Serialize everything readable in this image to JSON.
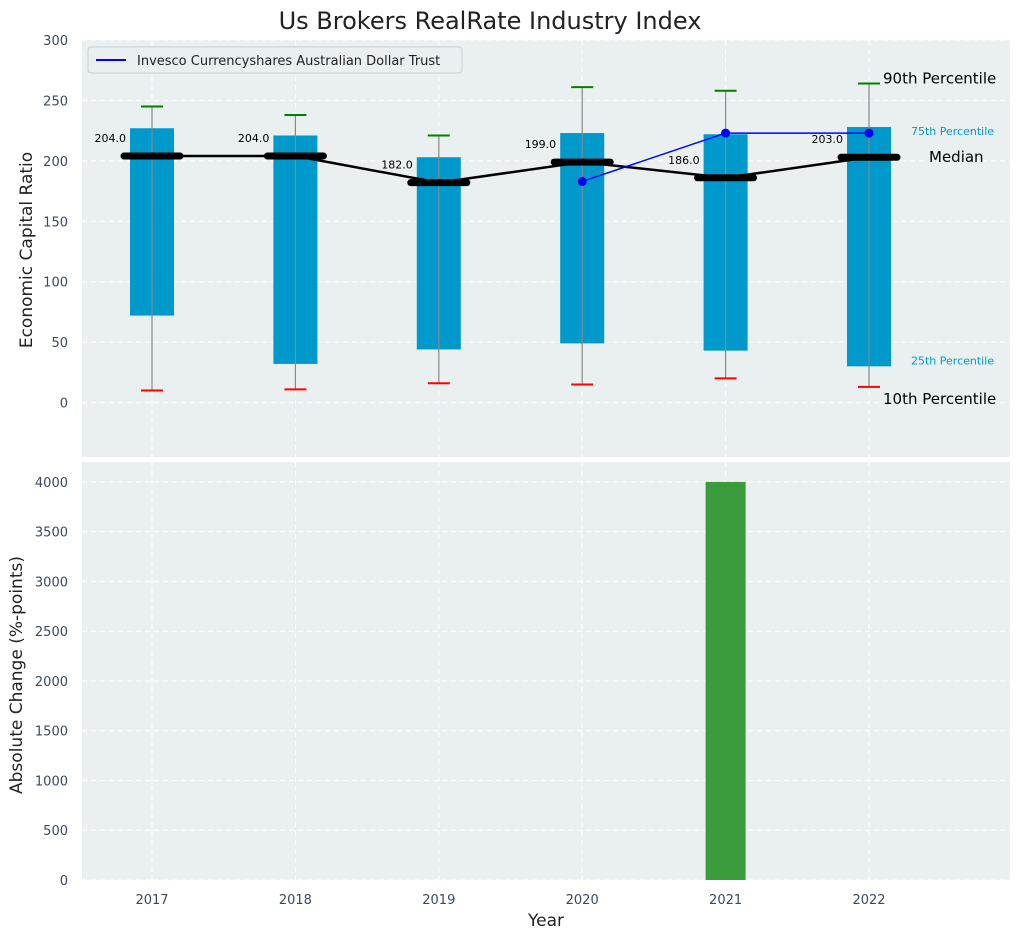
{
  "chart_data": [
    {
      "type": "box",
      "title": "Us Brokers RealRate Industry Index",
      "ylabel": "Economic Capital Ratio",
      "xlabel": "",
      "ylim": [
        -45,
        300
      ],
      "yticks": [
        0,
        50,
        100,
        150,
        200,
        250,
        300
      ],
      "grid": true,
      "categories": [
        "2017",
        "2018",
        "2019",
        "2020",
        "2021",
        "2022"
      ],
      "percentile_10": [
        10,
        11,
        16,
        15,
        20,
        13
      ],
      "percentile_25": [
        72,
        32,
        44,
        49,
        43,
        30
      ],
      "median": [
        204,
        204,
        182,
        199,
        186,
        203
      ],
      "percentile_75": [
        227,
        221,
        203,
        223,
        222,
        228
      ],
      "percentile_90": [
        245,
        238,
        221,
        261,
        258,
        264
      ],
      "median_labels": [
        "204.0",
        "204.0",
        "182.0",
        "199.0",
        "186.0",
        "203.0"
      ],
      "series": [
        {
          "name": "Invesco Currencyshares Australian Dollar Trust",
          "x": [
            "2020",
            "2021",
            "2022"
          ],
          "values": [
            183,
            223,
            223
          ],
          "color": "#0000ff"
        }
      ],
      "legend": {
        "position": "top-left",
        "entries": [
          "Invesco Currencyshares Australian Dollar Trust"
        ]
      },
      "annotations": {
        "p90": "90th Percentile",
        "p75": "75th Percentile",
        "median": "Median",
        "p25": "25th Percentile",
        "p10": "10th Percentile"
      },
      "colors": {
        "box": "#0099cc",
        "median_line": "#000000",
        "whisker": "#888888",
        "cap_top": "#008000",
        "cap_bottom": "#ff0000",
        "background": "#eaeff0"
      }
    },
    {
      "type": "bar",
      "ylabel": "Absolute Change (%-points)",
      "xlabel": "Year",
      "ylim": [
        0,
        4200
      ],
      "yticks": [
        0,
        500,
        1000,
        1500,
        2000,
        2500,
        3000,
        3500,
        4000
      ],
      "grid": true,
      "categories": [
        "2017",
        "2018",
        "2019",
        "2020",
        "2021",
        "2022"
      ],
      "values": [
        0,
        0,
        0,
        0,
        4000,
        0
      ],
      "colors": {
        "bar": "#3a9b3d",
        "background": "#eaeff0"
      }
    }
  ]
}
